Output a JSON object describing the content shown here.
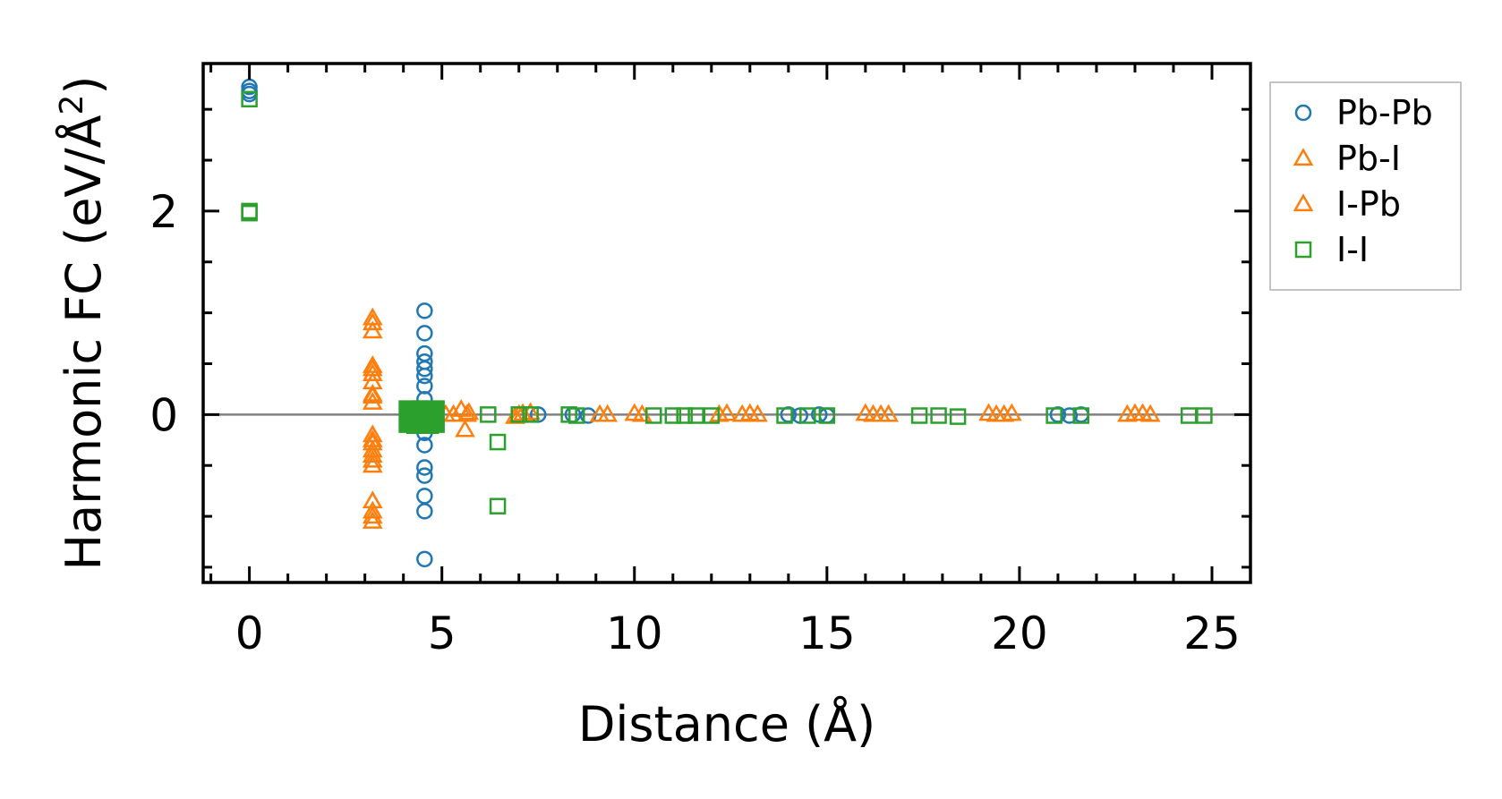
{
  "chart_data": {
    "type": "scatter",
    "title": "",
    "xlabel": "Distance (Å)",
    "ylabel": "Harmonic FC (eV/Å",
    "ylabel_superscript": "2",
    "ylabel_close": ")",
    "xlim": [
      -1.2,
      26
    ],
    "ylim": [
      -1.65,
      3.45
    ],
    "xticks": [
      0,
      5,
      10,
      15,
      20,
      25
    ],
    "xtick_labels": [
      "0",
      "5",
      "10",
      "15",
      "20",
      "25"
    ],
    "yticks": [
      0,
      2
    ],
    "ytick_labels": [
      "0",
      "2"
    ],
    "x_minor_step": 1,
    "y_minor_step": 0.5,
    "reference_line_y": 0,
    "legend_position": "outside-right-top",
    "series": [
      {
        "name": "Pb-Pb",
        "marker": "circle",
        "color": "#1f77b4",
        "filled": false,
        "points": [
          [
            0,
            3.22
          ],
          [
            0,
            3.18
          ],
          [
            0,
            3.15
          ],
          [
            4.55,
            1.02
          ],
          [
            4.55,
            0.8
          ],
          [
            4.55,
            0.6
          ],
          [
            4.55,
            0.52
          ],
          [
            4.55,
            0.45
          ],
          [
            4.55,
            0.38
          ],
          [
            4.55,
            0.28
          ],
          [
            4.55,
            0.15
          ],
          [
            4.55,
            0.05
          ],
          [
            4.55,
            -0.05
          ],
          [
            4.55,
            -0.18
          ],
          [
            4.55,
            -0.3
          ],
          [
            4.55,
            -0.52
          ],
          [
            4.55,
            -0.6
          ],
          [
            4.55,
            -0.8
          ],
          [
            4.55,
            -0.95
          ],
          [
            4.55,
            -1.42
          ],
          [
            7.5,
            0.0
          ],
          [
            8.4,
            0.0
          ],
          [
            8.8,
            -0.01
          ],
          [
            14.0,
            0.0
          ],
          [
            14.3,
            -0.01
          ],
          [
            14.8,
            0.0
          ],
          [
            15.0,
            -0.01
          ],
          [
            21.0,
            0.0
          ],
          [
            21.3,
            -0.01
          ],
          [
            21.6,
            0.0
          ]
        ]
      },
      {
        "name": "Pb-I",
        "marker": "triangle",
        "color": "#ff7f0e",
        "filled": false,
        "points": [
          [
            3.2,
            0.95
          ],
          [
            3.2,
            0.82
          ],
          [
            3.2,
            0.48
          ],
          [
            3.2,
            0.4
          ],
          [
            3.2,
            0.32
          ],
          [
            3.2,
            0.18
          ],
          [
            3.2,
            0.12
          ],
          [
            3.2,
            -0.2
          ],
          [
            3.2,
            -0.28
          ],
          [
            3.2,
            -0.35
          ],
          [
            3.2,
            -0.45
          ],
          [
            3.2,
            -0.5
          ],
          [
            3.2,
            -0.85
          ],
          [
            3.2,
            -1.0
          ],
          [
            3.2,
            -1.05
          ],
          [
            5.1,
            0.0
          ],
          [
            5.5,
            0.05
          ],
          [
            5.6,
            -0.15
          ],
          [
            5.7,
            0.02
          ],
          [
            7.0,
            0.0
          ],
          [
            7.3,
            0.02
          ],
          [
            9.3,
            0.0
          ],
          [
            10.0,
            0.01
          ],
          [
            12.4,
            0.01
          ],
          [
            12.8,
            0.0
          ],
          [
            13.2,
            0.0
          ],
          [
            16.0,
            0.01
          ],
          [
            16.2,
            0.0
          ],
          [
            16.6,
            0.0
          ],
          [
            19.2,
            0.01
          ],
          [
            19.6,
            0.0
          ],
          [
            22.8,
            0.0
          ],
          [
            23.0,
            0.01
          ],
          [
            23.4,
            0.0
          ]
        ]
      },
      {
        "name": "I-Pb",
        "marker": "triangle",
        "color": "#ff7f0e",
        "filled": false,
        "points": [
          [
            3.2,
            0.9
          ],
          [
            3.2,
            0.45
          ],
          [
            3.2,
            0.2
          ],
          [
            3.2,
            -0.25
          ],
          [
            3.2,
            -0.4
          ],
          [
            3.2,
            -0.95
          ],
          [
            5.3,
            0.0
          ],
          [
            5.65,
            0.0
          ],
          [
            6.9,
            -0.02
          ],
          [
            7.1,
            0.01
          ],
          [
            9.1,
            0.0
          ],
          [
            10.2,
            0.0
          ],
          [
            12.2,
            0.0
          ],
          [
            13.0,
            0.01
          ],
          [
            16.4,
            0.0
          ],
          [
            19.4,
            0.0
          ],
          [
            19.8,
            0.01
          ],
          [
            23.2,
            0.01
          ]
        ]
      },
      {
        "name": "I-I",
        "marker": "square",
        "color": "#2ca02c",
        "filled": false,
        "points": [
          [
            0,
            3.1
          ],
          [
            0,
            2.0
          ],
          [
            0,
            1.98
          ],
          [
            6.2,
            0.0
          ],
          [
            6.45,
            -0.27
          ],
          [
            6.45,
            -0.9
          ],
          [
            7.0,
            0.0
          ],
          [
            7.3,
            0.0
          ],
          [
            8.3,
            0.0
          ],
          [
            8.5,
            -0.01
          ],
          [
            10.5,
            -0.01
          ],
          [
            11.0,
            -0.01
          ],
          [
            11.3,
            -0.01
          ],
          [
            11.6,
            -0.01
          ],
          [
            12.0,
            -0.01
          ],
          [
            13.9,
            -0.01
          ],
          [
            14.5,
            -0.01
          ],
          [
            15.0,
            -0.01
          ],
          [
            17.4,
            -0.01
          ],
          [
            17.9,
            -0.01
          ],
          [
            18.4,
            -0.02
          ],
          [
            20.9,
            -0.01
          ],
          [
            21.6,
            -0.01
          ],
          [
            24.4,
            -0.01
          ],
          [
            24.8,
            -0.01
          ]
        ]
      },
      {
        "name": "",
        "marker": "square",
        "color": "#2ca02c",
        "filled": true,
        "points": [
          [
            4.3,
            -0.02
          ],
          [
            4.5,
            -0.03
          ],
          [
            4.65,
            -0.02
          ]
        ]
      }
    ]
  }
}
